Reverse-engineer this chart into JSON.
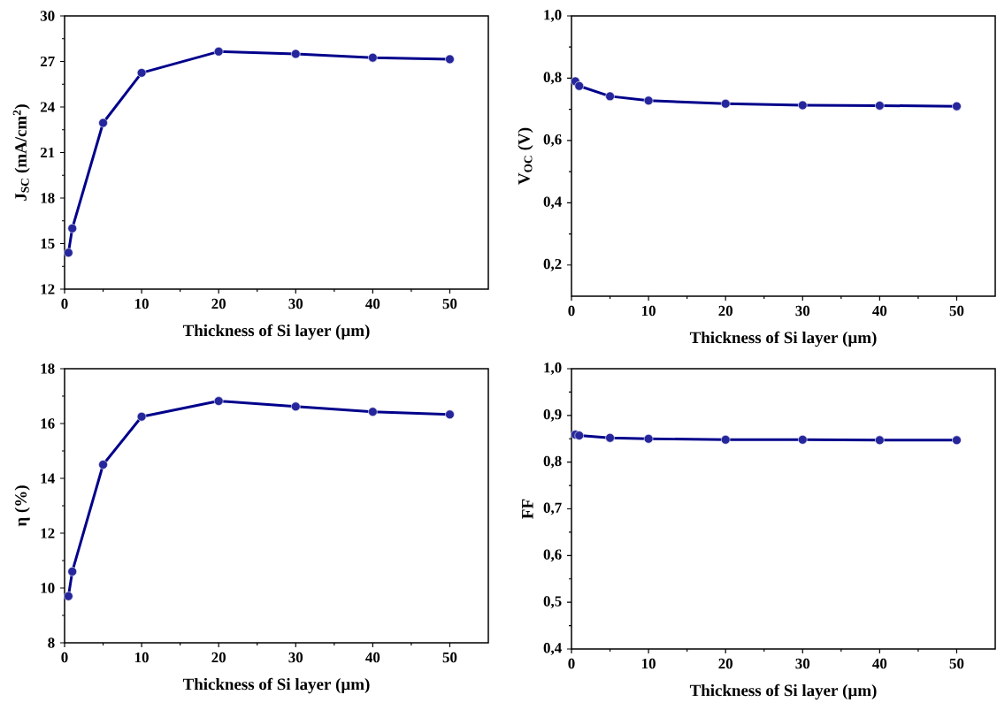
{
  "chart_data": [
    {
      "type": "line",
      "xlabel": "Thickness of Si layer (µm)",
      "ylabel": "J$_{SC}$ (mA/cm$^{2}$)",
      "color": "#00008b",
      "marker": "circle",
      "x": [
        0.5,
        1,
        5,
        10,
        20,
        30,
        40,
        50
      ],
      "values": [
        14.4,
        16.0,
        22.95,
        26.25,
        27.65,
        27.5,
        27.25,
        27.15
      ],
      "xlim": [
        0,
        55
      ],
      "xticks": [
        0,
        10,
        20,
        30,
        40,
        50
      ],
      "ylim": [
        12,
        30
      ],
      "yticks": [
        12,
        15,
        18,
        21,
        24,
        27,
        30
      ]
    },
    {
      "type": "line",
      "xlabel": "Thickness of Si layer (µm)",
      "ylabel": "V$_{OC}$ (V)",
      "color": "#00008b",
      "marker": "circle",
      "x": [
        0.5,
        1,
        5,
        10,
        20,
        30,
        40,
        50
      ],
      "values": [
        0.79,
        0.775,
        0.742,
        0.728,
        0.718,
        0.713,
        0.712,
        0.71
      ],
      "xlim": [
        0,
        55
      ],
      "xticks": [
        0,
        10,
        20,
        30,
        40,
        50
      ],
      "ylim": [
        0.1,
        1.0
      ],
      "yticks": [
        {
          "value": 0.2,
          "label": "0,2"
        },
        {
          "value": 0.4,
          "label": "0,4"
        },
        {
          "value": 0.6,
          "label": "0,6"
        },
        {
          "value": 0.8,
          "label": "0,8"
        },
        {
          "value": 1.0,
          "label": "1,0"
        }
      ]
    },
    {
      "type": "line",
      "xlabel": "Thickness of Si layer (µm)",
      "ylabel": "η (%)",
      "color": "#00008b",
      "marker": "circle",
      "x": [
        0.5,
        1,
        5,
        10,
        20,
        30,
        40,
        50
      ],
      "values": [
        9.7,
        10.6,
        14.5,
        16.25,
        16.82,
        16.62,
        16.43,
        16.33
      ],
      "xlim": [
        0,
        55
      ],
      "xticks": [
        0,
        10,
        20,
        30,
        40,
        50
      ],
      "ylim": [
        8,
        18
      ],
      "yticks": [
        8,
        10,
        12,
        14,
        16,
        18
      ]
    },
    {
      "type": "line",
      "xlabel": "Thickness of Si layer (µm)",
      "ylabel": "FF",
      "color": "#00008b",
      "marker": "circle",
      "x": [
        0.5,
        1,
        5,
        10,
        20,
        30,
        40,
        50
      ],
      "values": [
        0.859,
        0.857,
        0.852,
        0.85,
        0.848,
        0.848,
        0.847,
        0.847
      ],
      "xlim": [
        0,
        55
      ],
      "xticks": [
        0,
        10,
        20,
        30,
        40,
        50
      ],
      "ylim": [
        0.4,
        1.0
      ],
      "yticks": [
        {
          "value": 0.4,
          "label": "0,4"
        },
        {
          "value": 0.5,
          "label": "0,5"
        },
        {
          "value": 0.6,
          "label": "0,6"
        },
        {
          "value": 0.7,
          "label": "0,7"
        },
        {
          "value": 0.8,
          "label": "0,8"
        },
        {
          "value": 0.9,
          "label": "0,9"
        },
        {
          "value": 1.0,
          "label": "1,0"
        }
      ]
    }
  ]
}
